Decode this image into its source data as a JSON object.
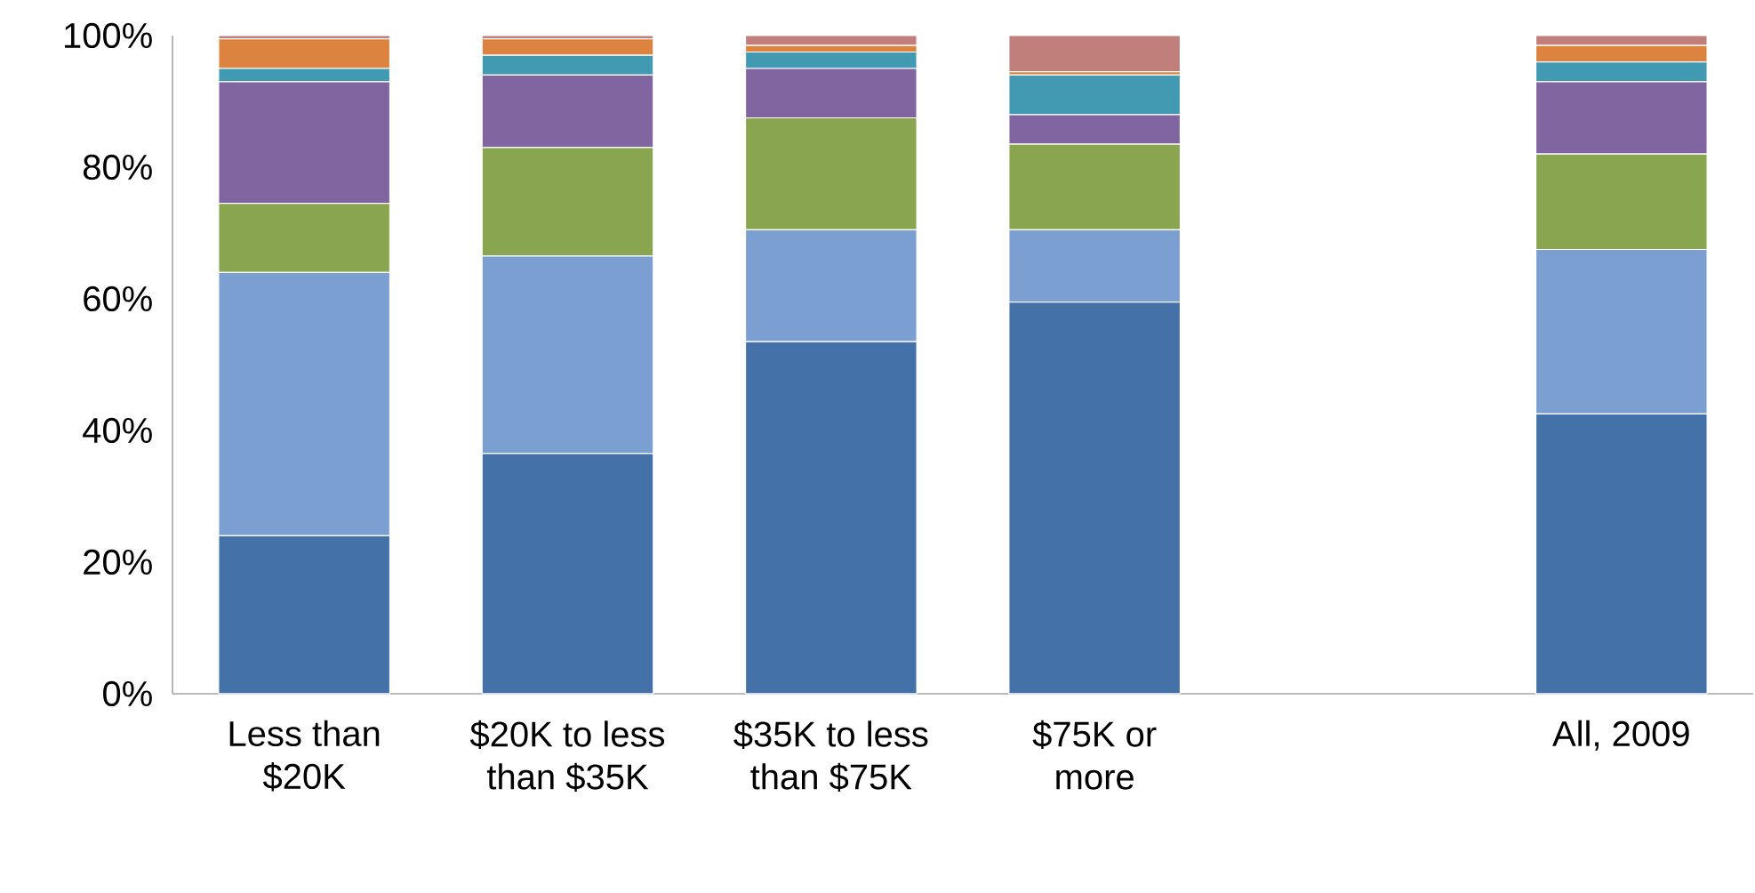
{
  "chart_data": {
    "type": "bar",
    "stacked": true,
    "categories": [
      "Less than $20K",
      "$20K to less than $35K",
      "$35K to less than $75K",
      "$75K or more",
      null,
      "All, 2009"
    ],
    "series": [
      {
        "color": "#4472a8",
        "values": [
          24,
          36.5,
          53.5,
          59.5,
          null,
          42.5
        ]
      },
      {
        "color": "#7a9fd0",
        "values": [
          40,
          30,
          17,
          11,
          null,
          25
        ]
      },
      {
        "color": "#8aa54f",
        "values": [
          10.5,
          16.5,
          17,
          13,
          null,
          14.5
        ]
      },
      {
        "color": "#8065a0",
        "values": [
          18.5,
          11,
          7.5,
          4.5,
          null,
          11
        ]
      },
      {
        "color": "#4299b2",
        "values": [
          2,
          3,
          2.5,
          6,
          null,
          3
        ]
      },
      {
        "color": "#dc843f",
        "values": [
          4.5,
          2.5,
          1,
          0.5,
          null,
          2.5
        ]
      },
      {
        "color": "#c07f7a",
        "values": [
          0.5,
          0.5,
          1.5,
          5.5,
          null,
          1.5
        ]
      }
    ],
    "ylim": [
      0,
      100
    ],
    "yticks": [
      {
        "value": 0,
        "label": "0%"
      },
      {
        "value": 20,
        "label": "20%"
      },
      {
        "value": 40,
        "label": "40%"
      },
      {
        "value": 60,
        "label": "60%"
      },
      {
        "value": 80,
        "label": "80%"
      },
      {
        "value": 100,
        "label": "100%"
      }
    ],
    "grid": false
  }
}
